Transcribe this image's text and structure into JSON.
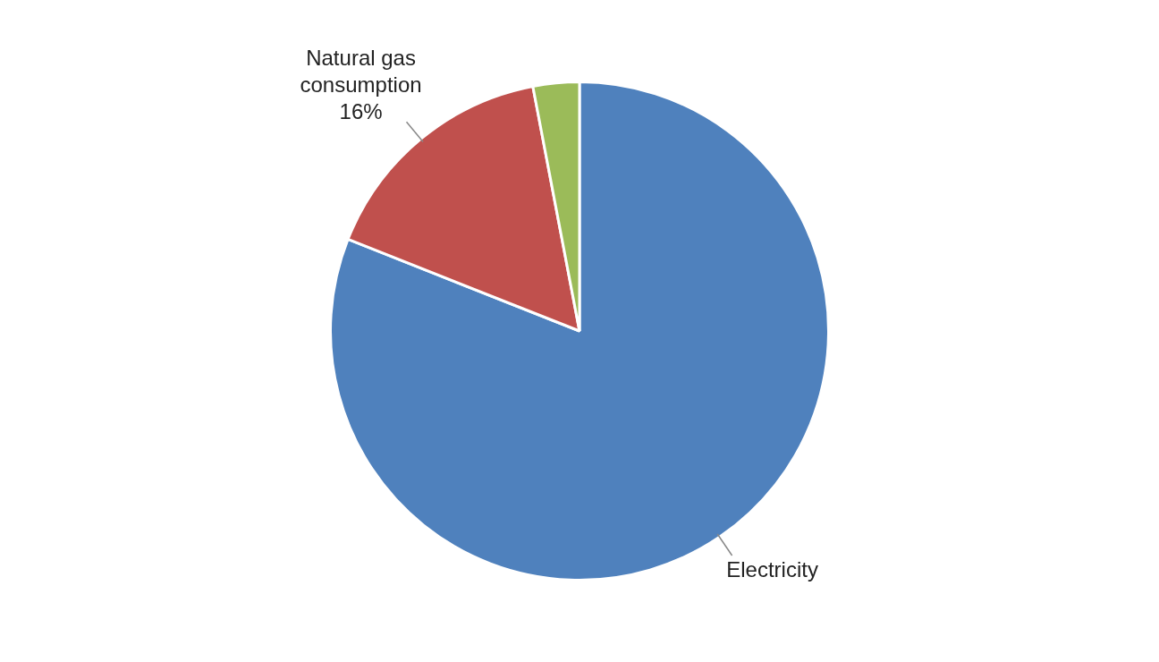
{
  "chart_data": {
    "type": "pie",
    "categories": [
      "Electricity",
      "Natural gas consumption",
      null
    ],
    "values": [
      81,
      16,
      3
    ],
    "colors": [
      "#4f81bd",
      "#c0504d",
      "#9bbb59"
    ],
    "value_labels": [
      null,
      "16%",
      null
    ],
    "legend": false
  }
}
